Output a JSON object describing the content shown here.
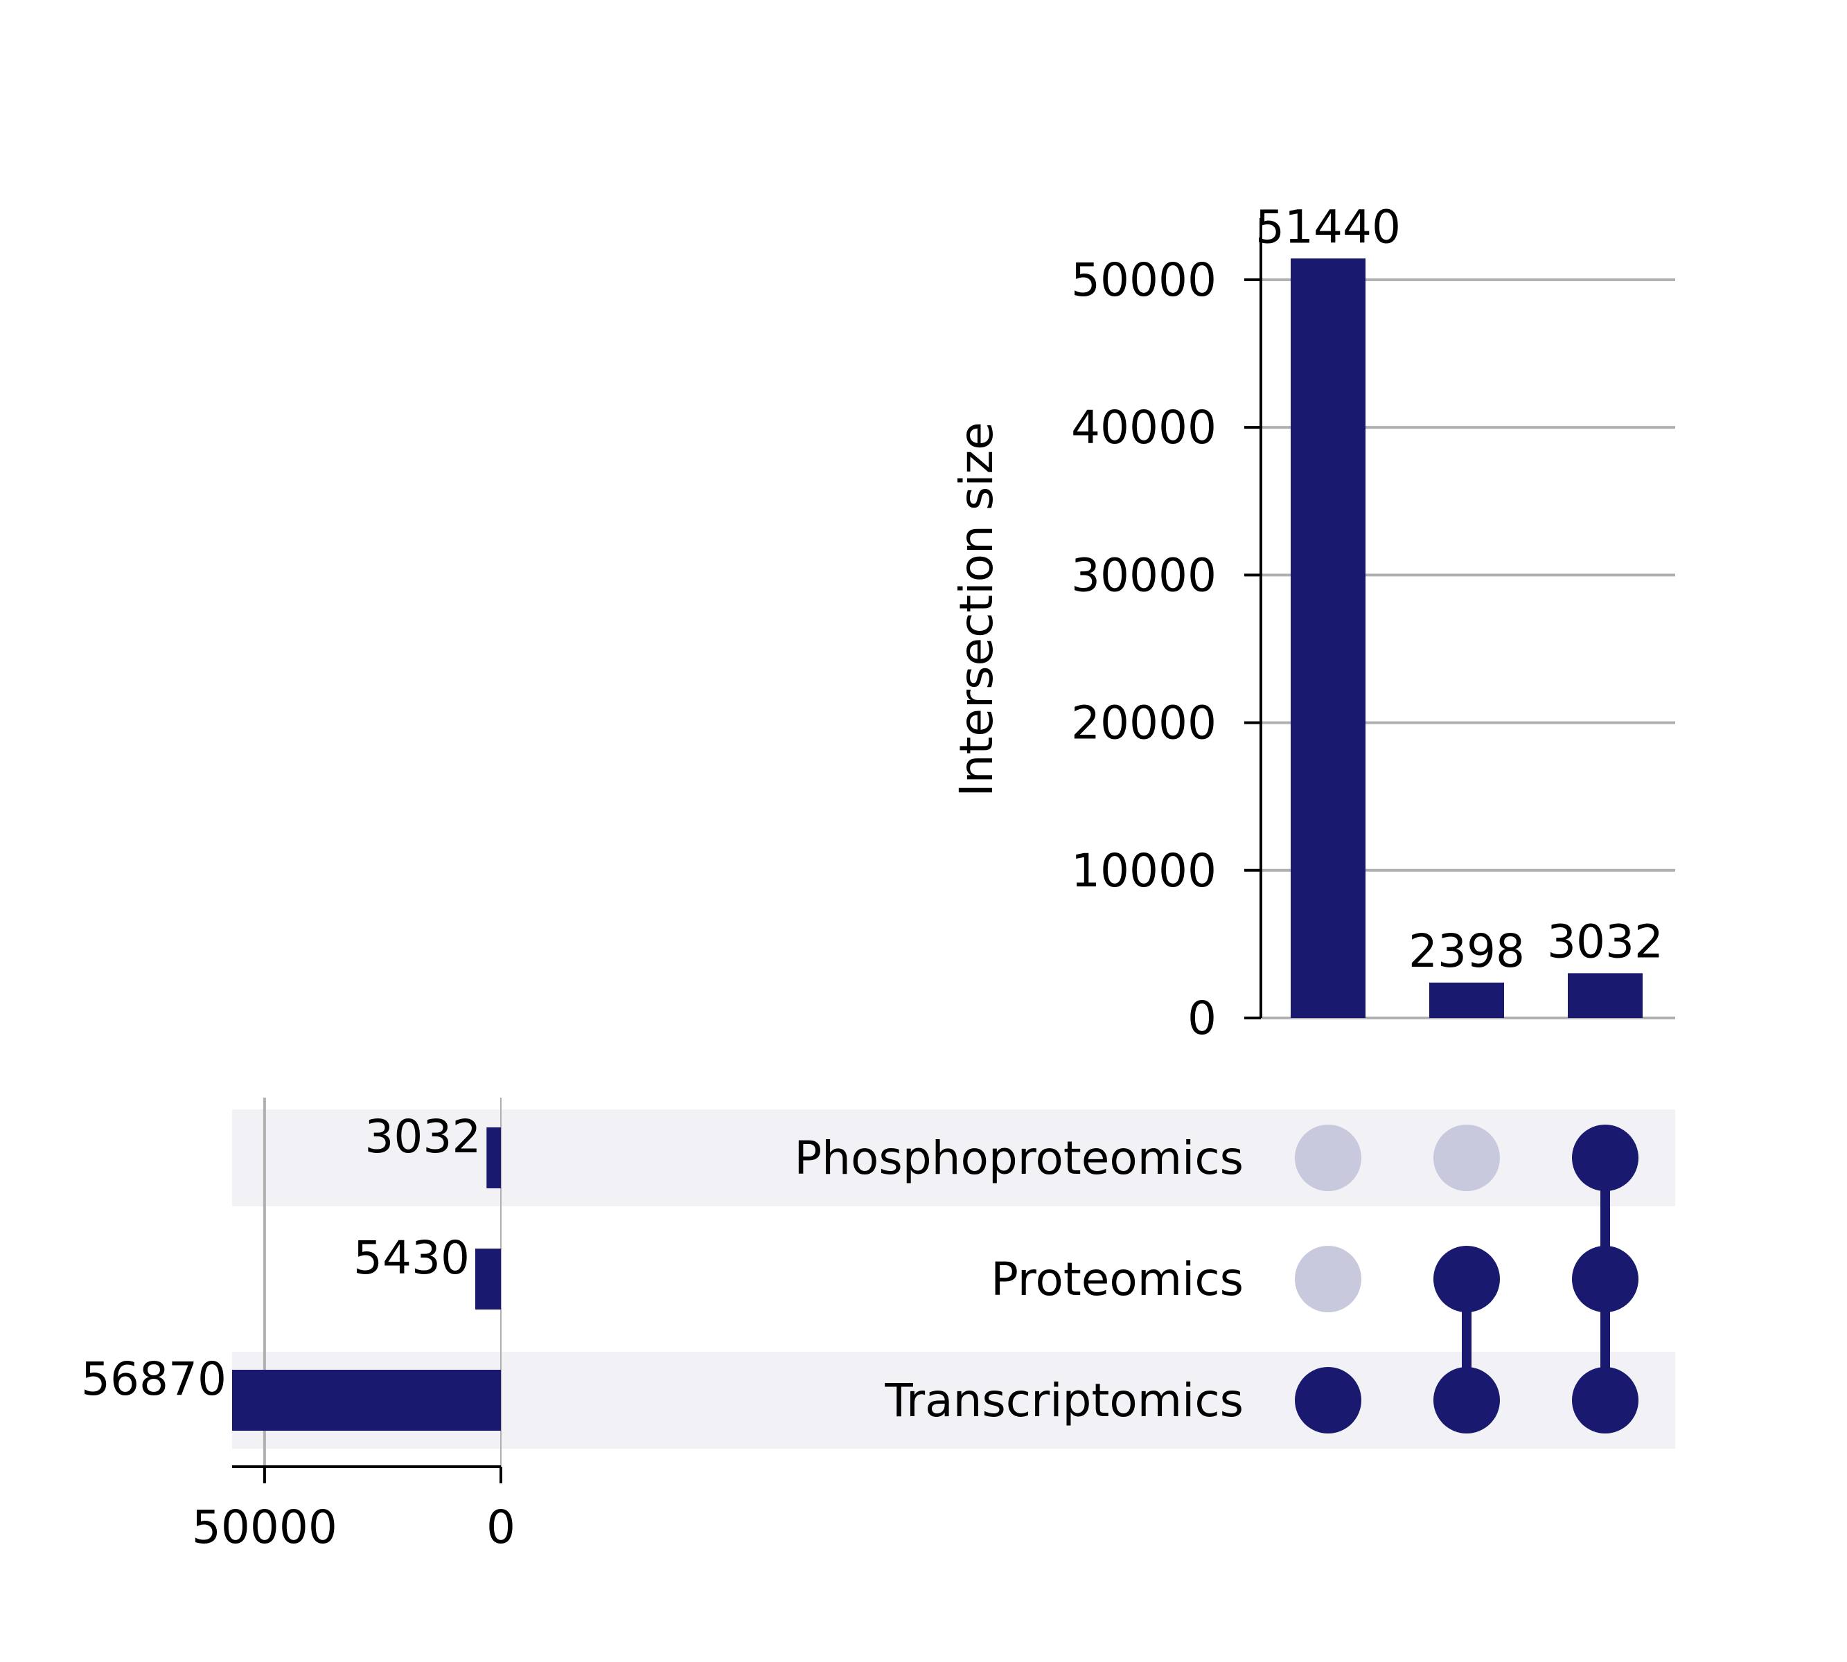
{
  "chart_data": {
    "type": "upset",
    "colors": {
      "bar": "#191970",
      "dot_active": "#191970",
      "dot_inactive": "#c8c9dc",
      "stripe": "#f1f1f6",
      "grid": "#b0b0b0"
    },
    "sets": [
      {
        "name": "Phosphoproteomics",
        "size": 3032,
        "size_label": "3032"
      },
      {
        "name": "Proteomics",
        "size": 5430,
        "size_label": "5430"
      },
      {
        "name": "Transcriptomics",
        "size": 56870,
        "size_label": "56870"
      }
    ],
    "intersections": [
      {
        "members": [
          "Transcriptomics"
        ],
        "size": 51440,
        "size_label": "51440"
      },
      {
        "members": [
          "Proteomics",
          "Transcriptomics"
        ],
        "size": 2398,
        "size_label": "2398"
      },
      {
        "members": [
          "Phosphoproteomics",
          "Proteomics",
          "Transcriptomics"
        ],
        "size": 3032,
        "size_label": "3032"
      }
    ],
    "intersection_axis": {
      "label": "Intersection size",
      "ticks": [
        0,
        10000,
        20000,
        30000,
        40000,
        50000
      ],
      "tick_labels": [
        "0",
        "10000",
        "20000",
        "30000",
        "40000",
        "50000"
      ],
      "ylim": [
        0,
        53000
      ],
      "grid": true
    },
    "set_size_axis": {
      "ticks": [
        50000,
        0
      ],
      "tick_labels": [
        "50000",
        "0"
      ],
      "xlim": [
        0,
        56870
      ],
      "grid": true,
      "direction": "reversed"
    }
  }
}
